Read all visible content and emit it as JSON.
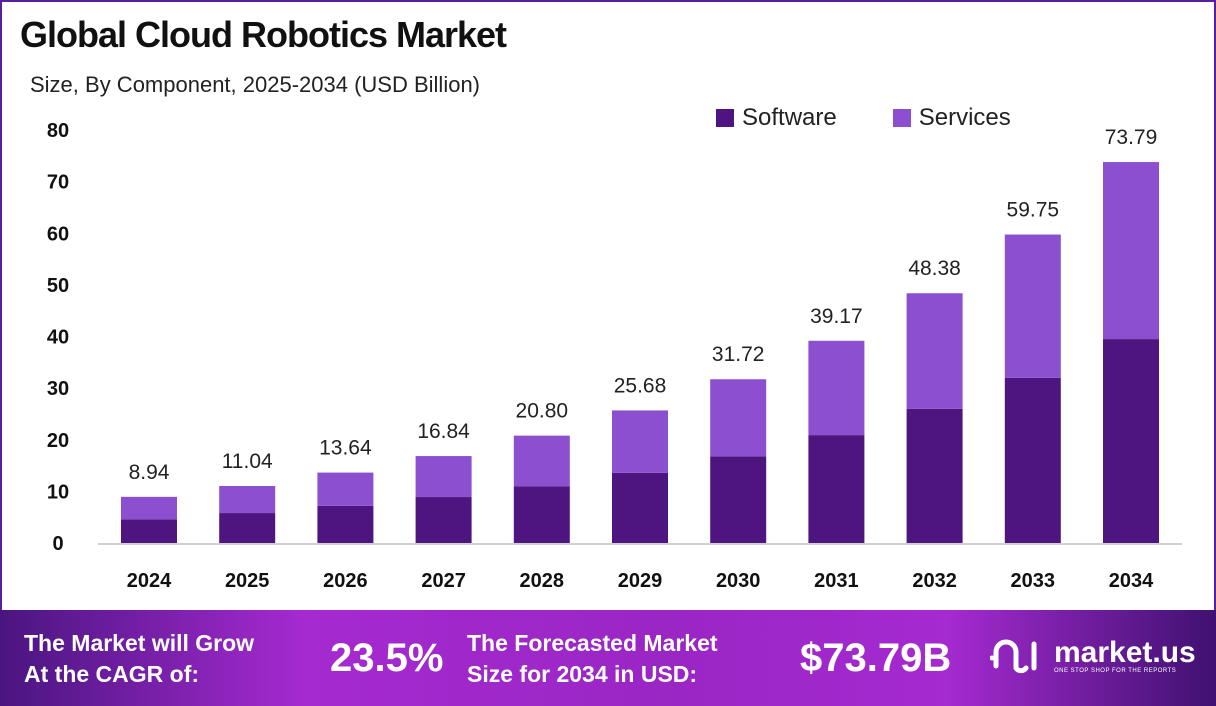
{
  "title": "Global Cloud Robotics Market",
  "subtitle": "Size, By Component, 2025-2034 (USD Billion)",
  "legend": [
    {
      "label": "Software",
      "color": "#4e1580"
    },
    {
      "label": "Services",
      "color": "#8c4fcf"
    }
  ],
  "chart_data": {
    "type": "bar",
    "stacked": true,
    "title": "Global Cloud Robotics Market",
    "subtitle": "Size, By Component, 2025-2034 (USD Billion)",
    "categories": [
      "2024",
      "2025",
      "2026",
      "2027",
      "2028",
      "2029",
      "2030",
      "2031",
      "2032",
      "2033",
      "2034"
    ],
    "series": [
      {
        "name": "Software",
        "color": "#4e1580",
        "values": [
          4.6,
          5.8,
          7.2,
          8.9,
          11.0,
          13.6,
          16.8,
          20.9,
          26.0,
          32.0,
          39.5
        ]
      },
      {
        "name": "Services",
        "color": "#8c4fcf",
        "values": [
          4.34,
          5.24,
          6.44,
          7.94,
          9.8,
          12.08,
          14.92,
          18.27,
          22.38,
          27.75,
          34.29
        ]
      }
    ],
    "totals": [
      "8.94",
      "11.04",
      "13.64",
      "16.84",
      "20.80",
      "25.68",
      "31.72",
      "39.17",
      "48.38",
      "59.75",
      "73.79"
    ],
    "yticks": [
      "0",
      "10",
      "20",
      "30",
      "40",
      "50",
      "60",
      "70",
      "80"
    ],
    "ylim": [
      0,
      80
    ],
    "grid": false,
    "legend_position": "top-right"
  },
  "footer": {
    "cagr_label_1": "The Market will Grow",
    "cagr_label_2": "At the CAGR of:",
    "cagr_value": "23.5%",
    "forecast_label_1": "The Forecasted Market",
    "forecast_label_2": "Size for 2034 in USD:",
    "forecast_value": "$73.79B",
    "brand": "market.us",
    "brand_tagline": "ONE STOP SHOP FOR THE REPORTS"
  }
}
